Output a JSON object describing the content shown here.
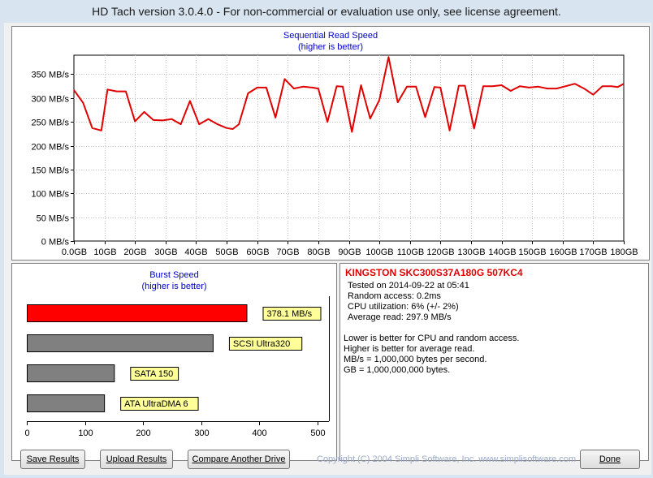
{
  "window": {
    "title": "HD Tach version 3.0.4.0  - For non-commercial or evaluation use only, see license agreement."
  },
  "colors": {
    "line": "#e00000",
    "highlight_bar": "#ff0000",
    "gray_bar": "#808080",
    "label_bg": "#ffff99",
    "title_blue": "#0000cc",
    "drive_red": "#e00000"
  },
  "chart_data": [
    {
      "type": "line",
      "title": "Sequential Read Speed",
      "subtitle": "(higher is better)",
      "ylim": [
        0,
        390
      ],
      "yticks": [
        0,
        50,
        100,
        150,
        200,
        250,
        300,
        350
      ],
      "ytick_labels": [
        "0 MB/s",
        "50 MB/s",
        "100 MB/s",
        "150 MB/s",
        "200 MB/s",
        "250 MB/s",
        "300 MB/s",
        "350 MB/s"
      ],
      "xlim": [
        0,
        180
      ],
      "xticks": [
        0,
        10,
        20,
        30,
        40,
        50,
        60,
        70,
        80,
        90,
        100,
        110,
        120,
        130,
        140,
        150,
        160,
        170,
        180
      ],
      "xtick_labels": [
        "0.0GB",
        "10GB",
        "20GB",
        "30GB",
        "40GB",
        "50GB",
        "60GB",
        "70GB",
        "80GB",
        "90GB",
        "100GB",
        "110GB",
        "120GB",
        "130GB",
        "140GB",
        "150GB",
        "160GB",
        "170GB",
        "180GB"
      ],
      "grid": true,
      "series": [
        {
          "x": [
            0,
            3,
            6,
            9,
            11,
            14,
            17,
            20,
            23,
            26,
            29,
            32,
            35,
            38,
            41,
            44,
            47,
            50,
            52,
            54,
            57,
            60,
            63,
            66,
            69,
            72,
            75,
            78,
            80,
            83,
            86,
            88,
            91,
            94,
            97,
            100,
            103,
            106,
            109,
            112,
            115,
            118,
            120,
            123,
            126,
            128,
            131,
            134,
            137,
            140,
            143,
            146,
            149,
            152,
            155,
            158,
            161,
            164,
            167,
            170,
            173,
            176,
            178,
            180
          ],
          "y": [
            317,
            290,
            237,
            232,
            318,
            314,
            314,
            251,
            271,
            254,
            253,
            256,
            245,
            294,
            245,
            256,
            245,
            237,
            235,
            245,
            310,
            322,
            322,
            259,
            340,
            320,
            324,
            322,
            320,
            250,
            325,
            324,
            229,
            327,
            257,
            296,
            386,
            291,
            324,
            324,
            260,
            323,
            322,
            232,
            326,
            326,
            236,
            325,
            325,
            327,
            315,
            325,
            322,
            324,
            320,
            320,
            325,
            330,
            320,
            307,
            325,
            325,
            323,
            330
          ]
        }
      ]
    },
    {
      "type": "bar",
      "orientation": "horizontal",
      "title": "Burst Speed",
      "subtitle": "(higher is better)",
      "xlim": [
        0,
        520
      ],
      "xticks": [
        0,
        100,
        200,
        300,
        400,
        500
      ],
      "xtick_labels": [
        "0",
        "100",
        "200",
        "300",
        "400",
        "500"
      ],
      "categories": [
        "378.1 MB/s",
        "SCSI Ultra320",
        "SATA 150",
        "ATA UltraDMA 6"
      ],
      "values": [
        378.1,
        320,
        150,
        133
      ],
      "highlight": [
        true,
        false,
        false,
        false
      ]
    }
  ],
  "info": {
    "drive": "KINGSTON SKC300S37A180G 507KC4",
    "lines": [
      "Tested on 2014-09-22 at 05:41",
      "Random access: 0.2ms",
      "CPU utilization: 6% (+/- 2%)",
      "Average read: 297.9 MB/s"
    ],
    "notes": [
      "Lower is better for CPU and random access.",
      "Higher is better for average read.",
      "MB/s = 1,000,000 bytes per second.",
      "GB = 1,000,000,000 bytes."
    ]
  },
  "buttons": {
    "save": "Save Results",
    "upload": "Upload Results",
    "compare": "Compare Another Drive",
    "done": "Done"
  },
  "copyright": "Copyright (C) 2004 Simpli Software, Inc. www.simplisoftware.com"
}
